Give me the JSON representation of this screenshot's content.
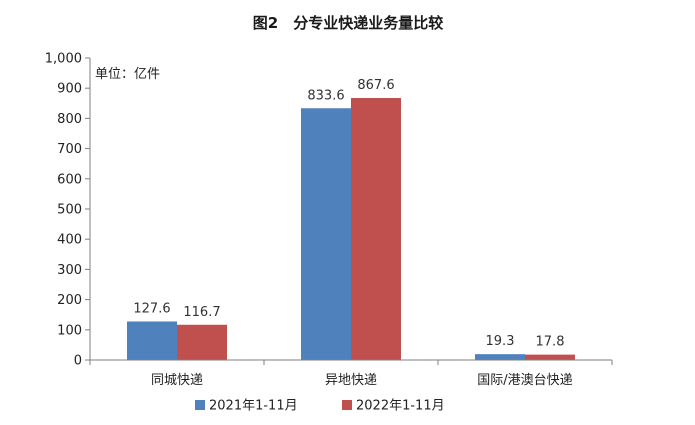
{
  "chart_data": {
    "type": "bar",
    "title": "图2　分专业快递业务量比较",
    "unit_label": "单位：亿件",
    "categories": [
      "同城快递",
      "异地快递",
      "国际/港澳台快递"
    ],
    "series": [
      {
        "name": "2021年1-11月",
        "color": "#4f81bd",
        "values": [
          127.6,
          833.6,
          19.3
        ]
      },
      {
        "name": "2022年1-11月",
        "color": "#c0504d",
        "values": [
          116.7,
          867.6,
          17.8
        ]
      }
    ],
    "ylim": [
      0,
      1000
    ],
    "yticks": [
      0,
      100,
      200,
      300,
      400,
      500,
      600,
      700,
      800,
      900,
      1000
    ],
    "ytick_labels": [
      "0",
      "100",
      "200",
      "300",
      "400",
      "500",
      "600",
      "700",
      "800",
      "900",
      "1,000"
    ],
    "grid": false,
    "legend_position": "bottom"
  }
}
